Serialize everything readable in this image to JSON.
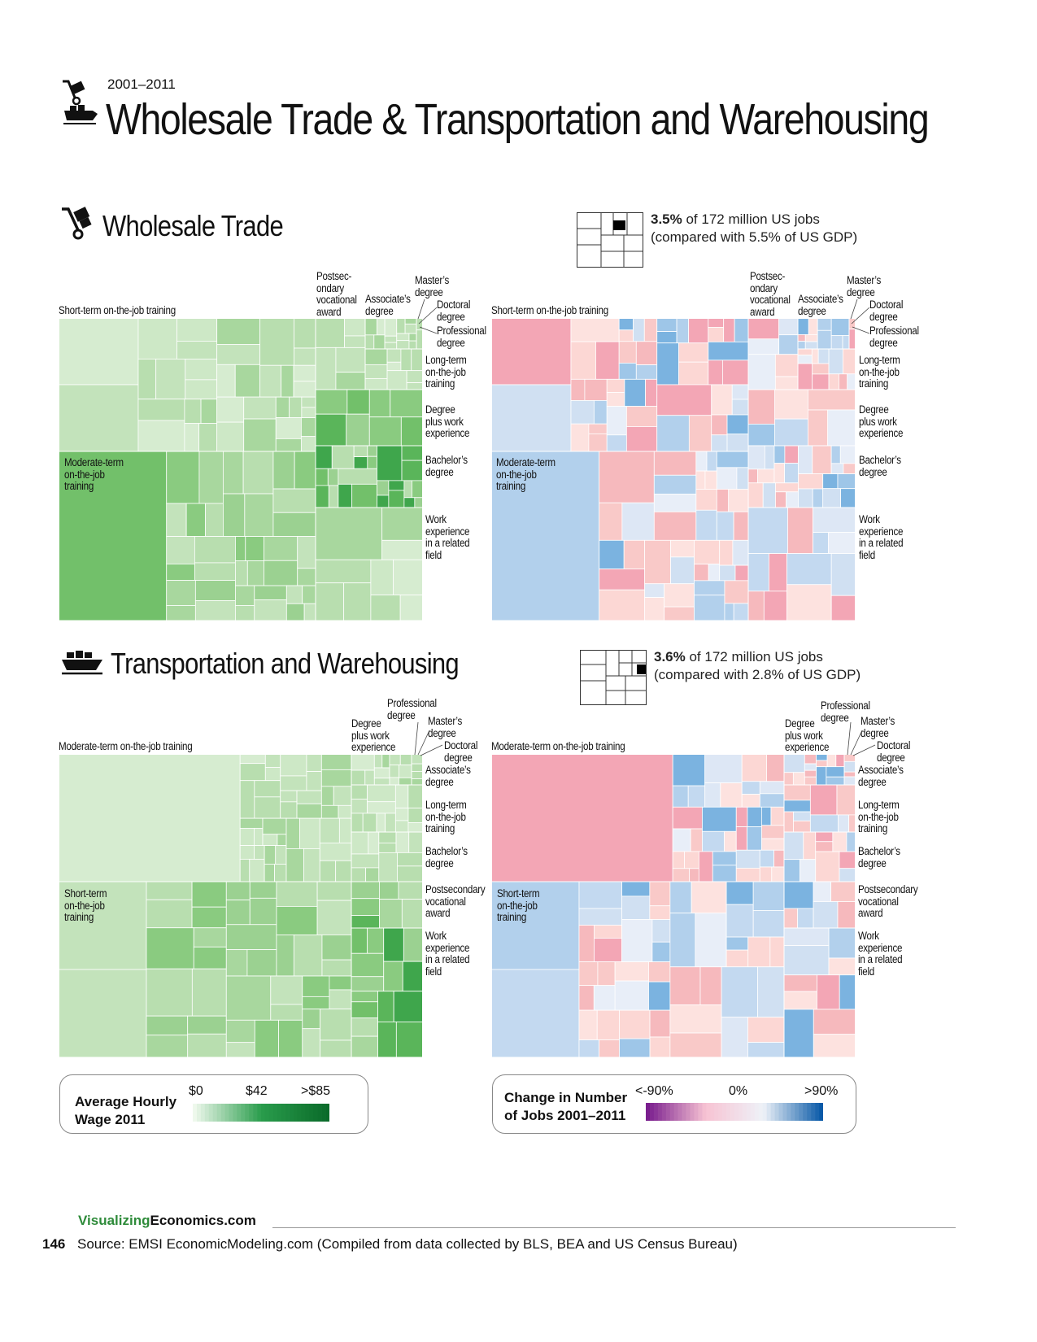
{
  "header": {
    "year_range": "2001–2011",
    "title": "Wholesale Trade & Transportation and Warehousing"
  },
  "sections": [
    {
      "id": "wholesale",
      "title": "Wholesale Trade",
      "share_pct": "3.5%",
      "share_rest": " of 172 million US jobs",
      "gdp_note": "(compared with 5.5% of US GDP)"
    },
    {
      "id": "transport",
      "title": "Transportation and Warehousing",
      "share_pct": "3.6%",
      "share_rest": " of 172 million US jobs",
      "gdp_note": "(compared with 2.8% of US GDP)"
    }
  ],
  "chart_data": [
    {
      "type": "treemap",
      "title": "Wholesale Trade",
      "size_measure": "number of jobs",
      "color_measure": "Average Hourly Wage 2011",
      "groups": [
        "Short-term on-the-job training",
        "Moderate-term on-the-job training",
        "Postsecondary vocational award",
        "Associate’s degree",
        "Master’s degree",
        "Doctoral degree",
        "Professional degree",
        "Long-term on-the-job training",
        "Degree plus work experience",
        "Bachelor’s degree",
        "Work experience in a related field"
      ]
    },
    {
      "type": "treemap",
      "title": "Wholesale Trade",
      "size_measure": "number of jobs",
      "color_measure": "Change in Number of Jobs 2001–2011",
      "groups": [
        "Short-term on-the-job training",
        "Moderate-term on-the-job training",
        "Postsecondary vocational award",
        "Associate’s degree",
        "Master’s degree",
        "Doctoral degree",
        "Professional degree",
        "Long-term on-the-job training",
        "Degree plus work experience",
        "Bachelor’s degree",
        "Work experience in a related field"
      ]
    },
    {
      "type": "treemap",
      "title": "Transportation and Warehousing",
      "size_measure": "number of jobs",
      "color_measure": "Average Hourly Wage 2011",
      "groups": [
        "Moderate-term on-the-job training",
        "Short-term on-the-job training",
        "Degree plus work experience",
        "Professional degree",
        "Master’s degree",
        "Doctoral degree",
        "Associate’s degree",
        "Long-term on-the-job training",
        "Bachelor’s degree",
        "Postsecondary vocational award",
        "Work experience in a related field"
      ]
    },
    {
      "type": "treemap",
      "title": "Transportation and Warehousing",
      "size_measure": "number of jobs",
      "color_measure": "Change in Number of Jobs 2001–2011",
      "groups": [
        "Moderate-term on-the-job training",
        "Short-term on-the-job training",
        "Degree plus work experience",
        "Professional degree",
        "Master’s degree",
        "Doctoral degree",
        "Associate’s degree",
        "Long-term on-the-job training",
        "Bachelor’s degree",
        "Postsecondary vocational award",
        "Work experience in a related field"
      ]
    }
  ],
  "labels": {
    "ws_short": "Short-term on-the-job training",
    "ws_postsec": "Postsec-\nondary\nvocational\naward",
    "ws_assoc": "Associate’s\ndegree",
    "ws_masters": "Master’s\ndegree",
    "ws_doctoral": "Doctoral\ndegree",
    "ws_prof": "Professional\ndegree",
    "ws_longterm": "Long-term\non-the-job\ntraining",
    "ws_degwork": "Degree\nplus work\nexperience",
    "ws_bach": "Bachelor’s\ndegree",
    "ws_work": "Work\nexperience\nin a related\nfield",
    "ws_moderate": "Moderate-term\non-the-job\ntraining",
    "tw_moderate": "Moderate-term on-the-job training",
    "tw_prof": "Professional\ndegree",
    "tw_degwork": "Degree\nplus work\nexperience",
    "tw_masters": "Master’s\ndegree",
    "tw_doctoral": "Doctoral\ndegree",
    "tw_assoc": "Associate’s\ndegree",
    "tw_longterm": "Long-term\non-the-job\ntraining",
    "tw_bach": "Bachelor’s\ndegree",
    "tw_postsec": "Postsecondary\nvocational\naward",
    "tw_work": "Work\nexperience\nin a related\nfield",
    "tw_short": "Short-term\non-the-job\ntraining"
  },
  "legend_wage": {
    "title": "Average Hourly\nWage 2011",
    "ticks": [
      "$0",
      "$42",
      ">$85"
    ],
    "colors": [
      "#eef8ec",
      "#2a9d4c",
      "#0a6b2a"
    ]
  },
  "legend_change": {
    "title": "Change in Number\nof Jobs 2001–2011",
    "ticks": [
      "<-90%",
      "0%",
      ">90%"
    ],
    "colors": [
      "#7a1e8e",
      "#f7c3d3",
      "#eef2f8",
      "#0a5aa8"
    ]
  },
  "footer": {
    "brand_green": "Visualizing",
    "brand_rest": "Economics.com",
    "page_number": "146",
    "source": "Source: EMSI EconomicModeling.com (Compiled from data collected by BLS, BEA and US Census Bureau)"
  },
  "icons": {
    "wholesale": "hand-truck-icon",
    "transport": "cargo-ship-icon",
    "share": "grid-share-icon"
  }
}
